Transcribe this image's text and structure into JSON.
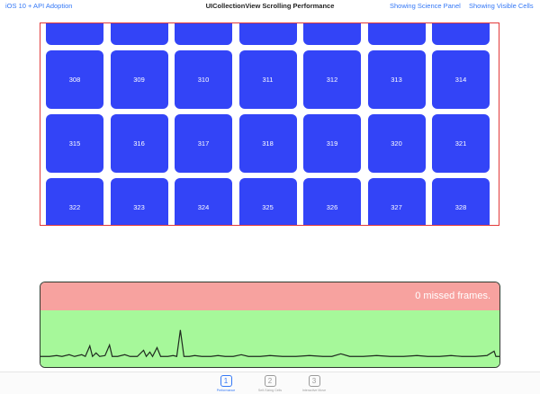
{
  "navbar": {
    "left_label": "iOS 10 + API Adoption",
    "title": "UICollectionView Scrolling Performance",
    "right_buttons": [
      "Showing Science Panel",
      "Showing Visible Cells"
    ]
  },
  "collection": {
    "cell_color": "#3344f7",
    "border_color": "#e23a3a",
    "columns": 7,
    "rows": [
      [
        "",
        "",
        "",
        "",
        "",
        "",
        ""
      ],
      [
        "308",
        "309",
        "310",
        "311",
        "312",
        "313",
        "314"
      ],
      [
        "315",
        "316",
        "317",
        "318",
        "319",
        "320",
        "321"
      ],
      [
        "322",
        "323",
        "324",
        "325",
        "326",
        "327",
        "328"
      ]
    ]
  },
  "science_panel": {
    "missed_frames_text": "0 missed frames.",
    "missed_color": "#f7a29f",
    "ok_color": "#a6f89a",
    "line_color": "#1f2a1f"
  },
  "tabbar": {
    "tabs": [
      {
        "number": "1",
        "label": "Performance",
        "active": true
      },
      {
        "number": "2",
        "label": "Self-Sizing Cells",
        "active": false
      },
      {
        "number": "3",
        "label": "Interactive Move",
        "active": false
      }
    ]
  }
}
